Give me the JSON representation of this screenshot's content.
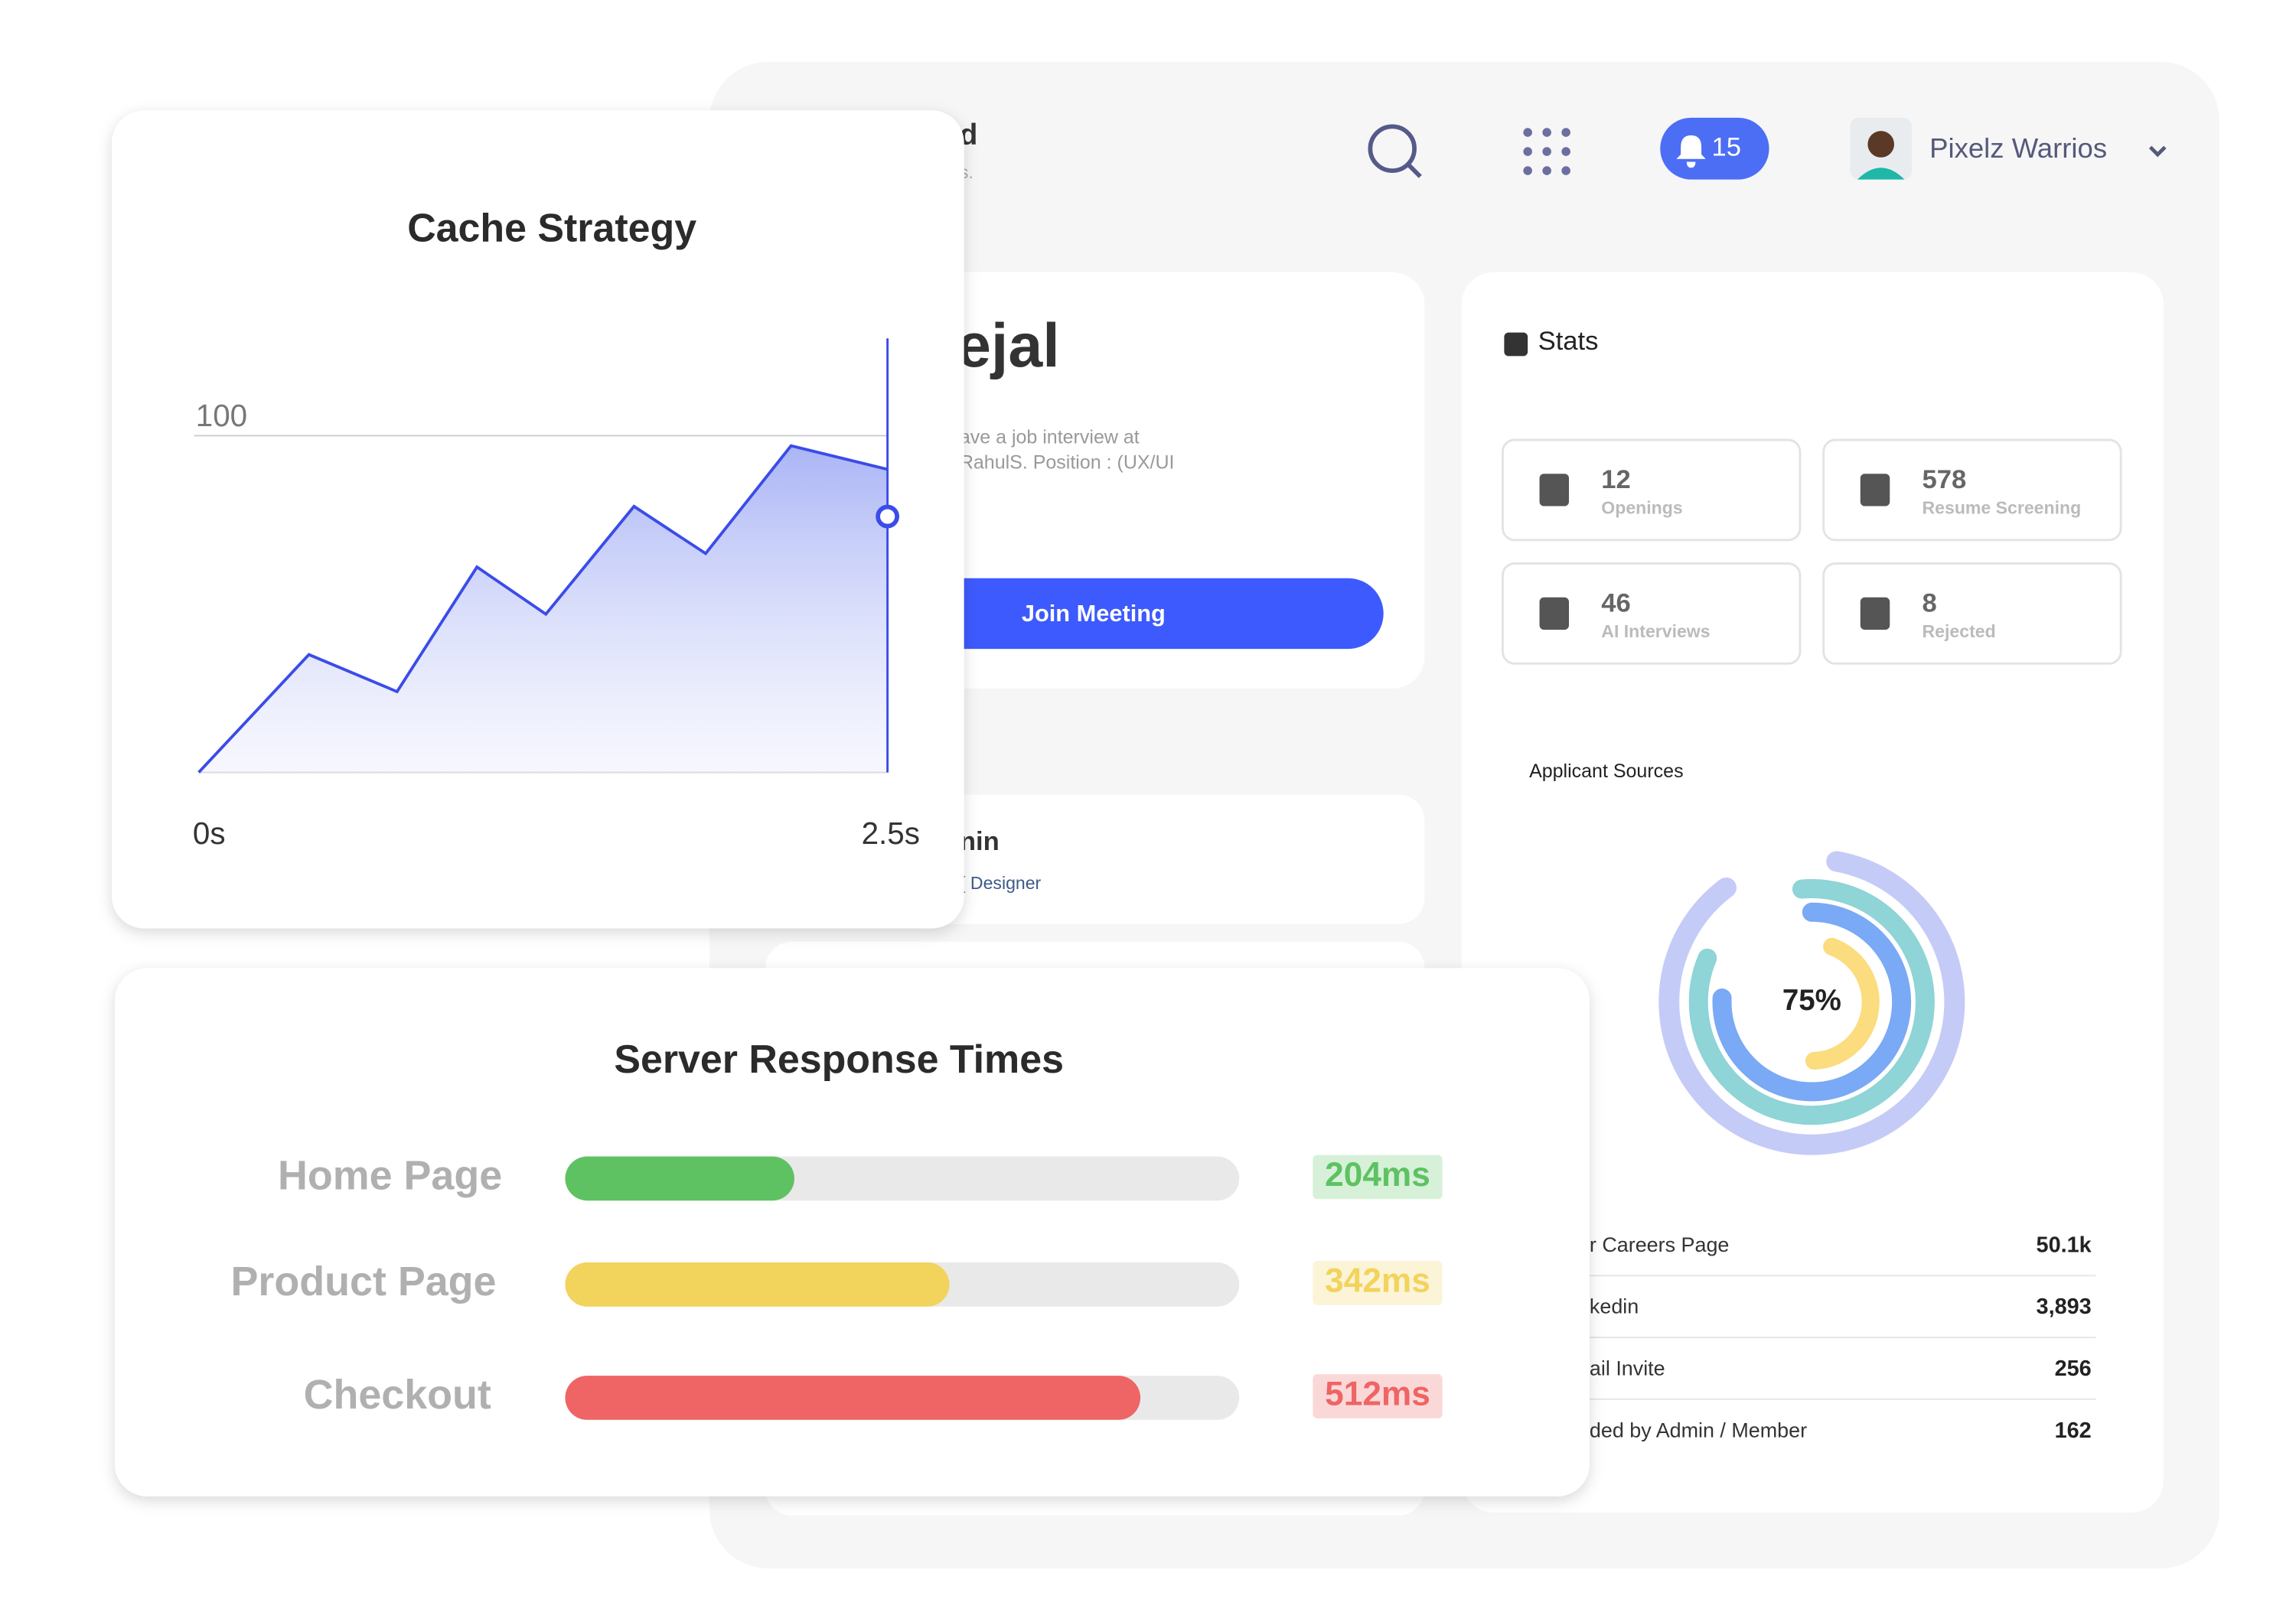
{
  "chart_data": [
    {
      "type": "line",
      "title": "Cache Strategy",
      "x": [
        0,
        0.4,
        0.72,
        1.01,
        1.26,
        1.58,
        1.84,
        2.15,
        2.5
      ],
      "values": [
        0,
        35,
        24,
        61,
        47,
        79,
        65,
        97,
        90
      ],
      "color": "#3b4ce8",
      "xlim": [
        0,
        2.5
      ],
      "ylim": [
        0,
        128
      ],
      "xticks": [
        {
          "value": 0,
          "label": "0s"
        },
        {
          "value": 2.5,
          "label": "2.5s"
        }
      ],
      "yticks": [
        100
      ],
      "grid": true,
      "marker": {
        "x": 2.5,
        "y": 76
      }
    },
    {
      "type": "hbar",
      "title": "Server Response Times",
      "categories": [
        "Home Page",
        "Product Page",
        "Checkout"
      ],
      "values": [
        204,
        342,
        512
      ],
      "value_labels": [
        "204ms",
        "342ms",
        "512ms"
      ],
      "colors": [
        "#5ec262",
        "#f2d35c",
        "#ef6464"
      ],
      "xlim": [
        0,
        600
      ]
    }
  ],
  "dashboard": {
    "header": {
      "title_fragment": "d",
      "subtitle_fragment": "s.",
      "notifications": 15,
      "user": "Pixelz Warrios"
    },
    "welcome": {
      "name_fragment": "ejal",
      "line1": "ave a job interview at",
      "line2": "RahulS. Position : (UX/UI",
      "button": "Join Meeting"
    },
    "meeting": {
      "name_fragment": "nin",
      "role_fragment": "( Designer"
    },
    "stats": {
      "title": "Stats",
      "items": [
        {
          "value": 12,
          "label": "Openings"
        },
        {
          "value": 578,
          "label": "Resume Screening"
        },
        {
          "value": 46,
          "label": "AI Interviews"
        },
        {
          "value": 8,
          "label": "Rejected"
        }
      ]
    },
    "sources": {
      "title": "Applicant Sources",
      "center": "75%",
      "rows": [
        [
          "r Careers Page",
          "50.1k"
        ],
        [
          "kedin",
          "3,893"
        ],
        [
          "ail Invite",
          "256"
        ],
        [
          "ded by Admin / Member",
          "162"
        ]
      ]
    }
  }
}
